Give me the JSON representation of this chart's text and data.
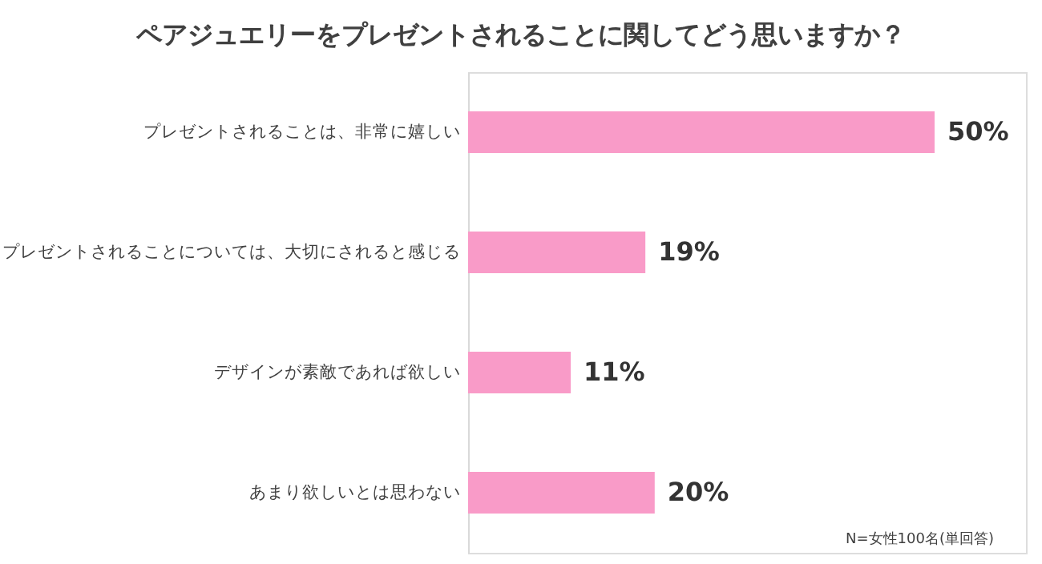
{
  "chart_data": {
    "type": "bar",
    "orientation": "horizontal",
    "title": "ペアジュエリーをプレゼントされることに関してどう思いますか？",
    "categories": [
      "プレゼントされることは、非常に嬉しい",
      "プレゼントされることについては、大切にされると感じる",
      "デザインが素敵であれば欲しい",
      "あまり欲しいとは思わない"
    ],
    "values": [
      50,
      19,
      11,
      20
    ],
    "value_labels": [
      "50%",
      "19%",
      "11%",
      "20%"
    ],
    "color": "#f99bc8",
    "annotations": [
      "N=女性100名(単回答)"
    ],
    "grid": false
  }
}
